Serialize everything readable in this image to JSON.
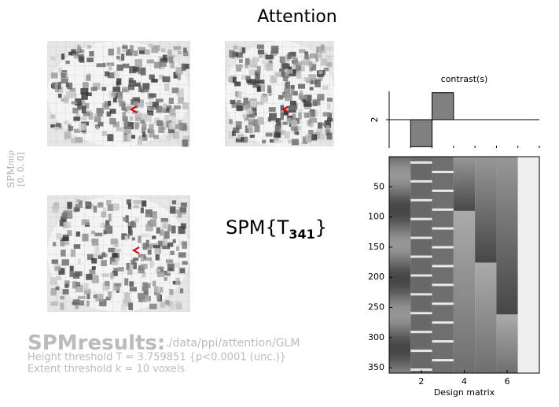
{
  "title": "Attention",
  "mip_label": {
    "main": "SPM",
    "sub": "mip"
  },
  "coordinates": "[0, 0, 0]",
  "statistic": {
    "main": "SPM{T",
    "sub": "341",
    "close": "}"
  },
  "results": {
    "heading": "SPMresults:",
    "path": "./data/ppi/attention/GLM",
    "height_threshold": "Height threshold T = 3.759851  {p<0.0001 (unc.)}",
    "extent_threshold": "Extent threshold k = 10 voxels"
  },
  "chart_data": [
    {
      "type": "bar",
      "title": "contrast(s)",
      "x": [
        1,
        2,
        3,
        4,
        5,
        6,
        7
      ],
      "values": [
        0,
        -1,
        1,
        0,
        0,
        0,
        0
      ],
      "color": "#808080",
      "xlim": [
        0.5,
        7.5
      ],
      "ylim": [
        -1.05,
        1.05
      ],
      "yticks": [
        {
          "value": 0,
          "label": "2"
        }
      ]
    },
    {
      "type": "image",
      "xlabel": "Design matrix",
      "xlim": [
        0.5,
        7.5
      ],
      "xticks": [
        2,
        4,
        6
      ],
      "ylim": [
        359,
        0
      ],
      "yticks": [
        50,
        100,
        150,
        200,
        250,
        300,
        350
      ]
    }
  ]
}
